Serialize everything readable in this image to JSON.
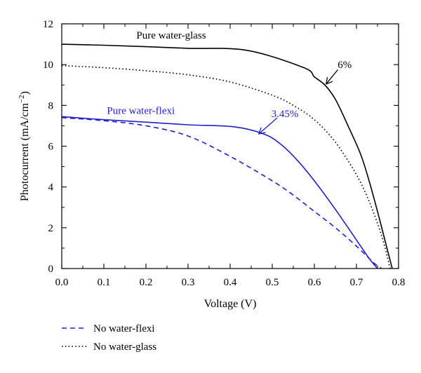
{
  "chart_data": {
    "type": "line",
    "xlabel": "Voltage (V)",
    "ylabel": "Photocurrent (mA/cm",
    "ylabel_sup": "−2",
    "ylabel_close": ")",
    "xlim": [
      0.0,
      0.8
    ],
    "ylim": [
      0,
      12
    ],
    "x_ticks": [
      "0.0",
      "0.1",
      "0.2",
      "0.3",
      "0.4",
      "0.5",
      "0.6",
      "0.7",
      "0.8"
    ],
    "y_ticks": [
      "0",
      "2",
      "4",
      "6",
      "8",
      "10",
      "12"
    ],
    "grid": false,
    "colors": {
      "black": "#000000",
      "blue": "#1f1fd0"
    },
    "series": [
      {
        "name": "Pure water-glass",
        "color": "#000000",
        "dash": "solid",
        "points": [
          [
            0.0,
            11.0
          ],
          [
            0.1,
            10.95
          ],
          [
            0.2,
            10.88
          ],
          [
            0.3,
            10.8
          ],
          [
            0.44,
            10.7
          ],
          [
            0.575,
            9.85
          ],
          [
            0.6,
            9.4
          ],
          [
            0.625,
            9.0
          ],
          [
            0.65,
            8.3
          ],
          [
            0.68,
            7.0
          ],
          [
            0.71,
            5.6
          ],
          [
            0.73,
            4.3
          ],
          [
            0.75,
            2.8
          ],
          [
            0.77,
            1.2
          ],
          [
            0.785,
            0.0
          ]
        ]
      },
      {
        "name": "No water-glass",
        "color": "#000000",
        "dash": "dotted",
        "points": [
          [
            0.0,
            9.95
          ],
          [
            0.1,
            9.85
          ],
          [
            0.2,
            9.7
          ],
          [
            0.3,
            9.5
          ],
          [
            0.4,
            9.15
          ],
          [
            0.5,
            8.5
          ],
          [
            0.55,
            8.0
          ],
          [
            0.6,
            7.3
          ],
          [
            0.65,
            6.2
          ],
          [
            0.7,
            4.6
          ],
          [
            0.73,
            3.3
          ],
          [
            0.76,
            1.6
          ],
          [
            0.78,
            0.0
          ]
        ]
      },
      {
        "name": "Pure water-flexi",
        "color": "#1f1fd0",
        "dash": "solid",
        "points": [
          [
            0.0,
            7.45
          ],
          [
            0.1,
            7.3
          ],
          [
            0.2,
            7.18
          ],
          [
            0.3,
            7.05
          ],
          [
            0.41,
            6.95
          ],
          [
            0.48,
            6.6
          ],
          [
            0.52,
            6.1
          ],
          [
            0.56,
            5.3
          ],
          [
            0.6,
            4.3
          ],
          [
            0.65,
            2.9
          ],
          [
            0.7,
            1.4
          ],
          [
            0.73,
            0.5
          ],
          [
            0.75,
            0.0
          ]
        ]
      },
      {
        "name": "No water-flexi",
        "color": "#1f1fd0",
        "dash": "dashed",
        "points": [
          [
            0.0,
            7.4
          ],
          [
            0.1,
            7.25
          ],
          [
            0.2,
            7.0
          ],
          [
            0.3,
            6.5
          ],
          [
            0.4,
            5.5
          ],
          [
            0.5,
            4.3
          ],
          [
            0.55,
            3.6
          ],
          [
            0.6,
            2.8
          ],
          [
            0.65,
            2.0
          ],
          [
            0.7,
            1.1
          ],
          [
            0.74,
            0.3
          ],
          [
            0.76,
            0.0
          ]
        ]
      }
    ],
    "annotations": [
      {
        "text": "Pure water-glass",
        "color": "#000000",
        "x": 0.26,
        "y": 11.45
      },
      {
        "text": "6%",
        "color": "#000000",
        "x": 0.672,
        "y": 10.0,
        "arrow_to": [
          0.628,
          9.05
        ]
      },
      {
        "text": "Pure water-flexi",
        "color": "#1f1fd0",
        "x": 0.188,
        "y": 7.75
      },
      {
        "text": "3.45%",
        "color": "#1f1fd0",
        "x": 0.53,
        "y": 7.6,
        "arrow_to": [
          0.468,
          6.6
        ]
      }
    ],
    "legend": {
      "placement": "below-left",
      "entries": [
        {
          "label": "No water-flexi",
          "color": "#1f1fd0",
          "dash": "dashed"
        },
        {
          "label": "No water-glass",
          "color": "#000000",
          "dash": "dotted"
        }
      ]
    }
  }
}
